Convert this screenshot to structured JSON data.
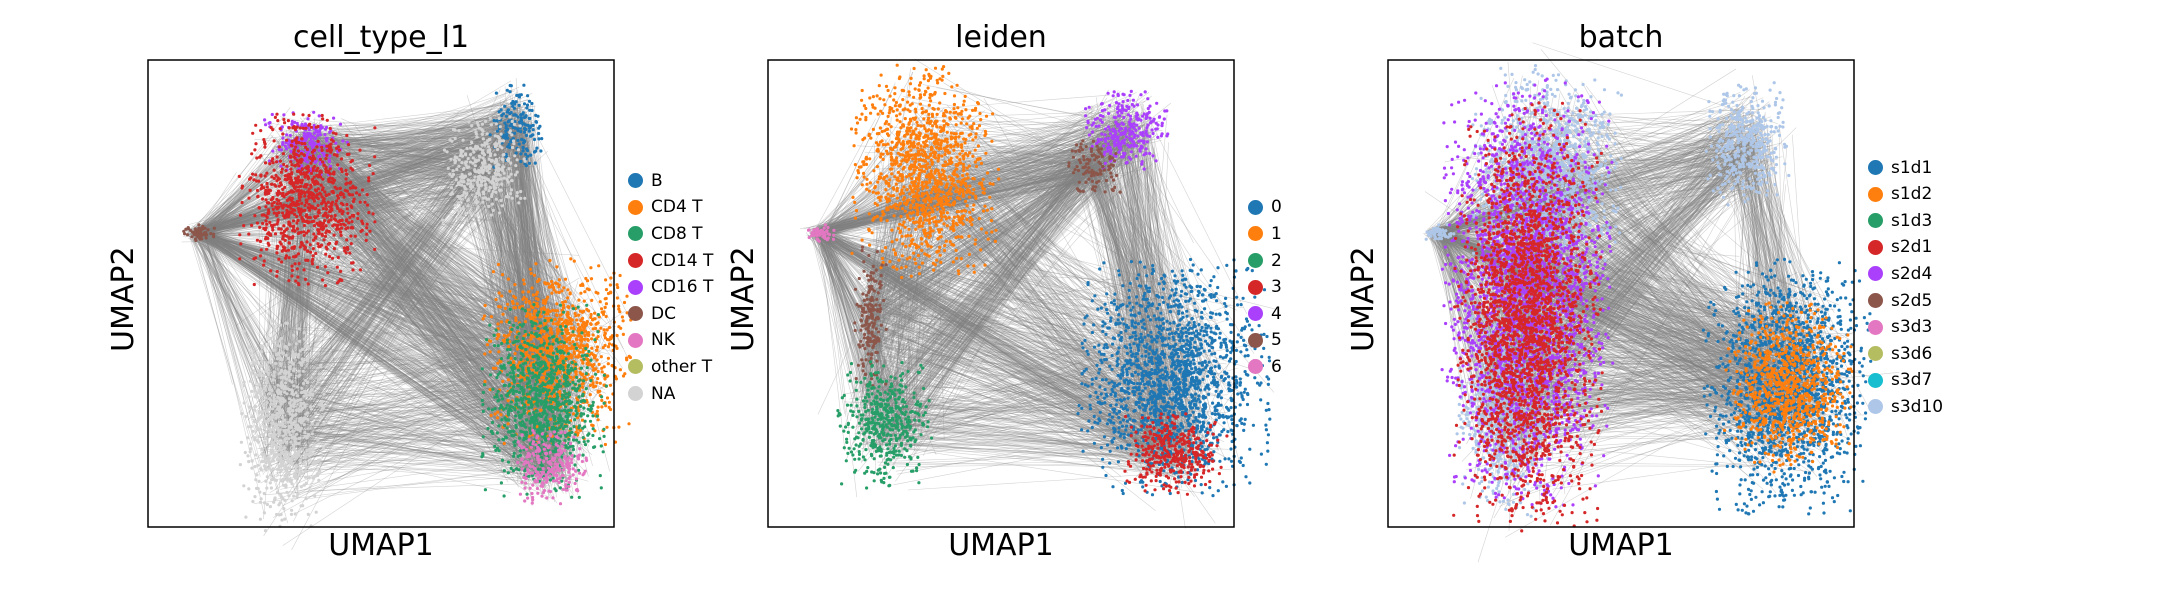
{
  "chart_data": [
    {
      "type": "scatter",
      "title": "cell_type_l1",
      "xlabel": "UMAP1",
      "ylabel": "UMAP2",
      "grid": false,
      "legend_position": "right",
      "legend": [
        {
          "name": "B",
          "color": "#1f77b4"
        },
        {
          "name": "CD4 T",
          "color": "#ff7f0e"
        },
        {
          "name": "CD8 T",
          "color": "#279e68"
        },
        {
          "name": "CD14 T",
          "color": "#d62728"
        },
        {
          "name": "CD16 T",
          "color": "#aa40fc"
        },
        {
          "name": "DC",
          "color": "#8c564b"
        },
        {
          "name": "NK",
          "color": "#e377c2"
        },
        {
          "name": "other T",
          "color": "#b5bd61"
        },
        {
          "name": "NA",
          "color": "#d3d3d3"
        }
      ],
      "clusters": [
        {
          "group": "B",
          "x": 0.79,
          "y": 0.86,
          "sx": 0.025,
          "sy": 0.04
        },
        {
          "group": "CD16 T",
          "x": 0.34,
          "y": 0.82,
          "sx": 0.04,
          "sy": 0.03
        },
        {
          "group": "CD14 T",
          "x": 0.34,
          "y": 0.7,
          "sx": 0.065,
          "sy": 0.08
        },
        {
          "group": "DC",
          "x": 0.11,
          "y": 0.63,
          "sx": 0.015,
          "sy": 0.008
        },
        {
          "group": "CD4 T",
          "x": 0.88,
          "y": 0.37,
          "sx": 0.07,
          "sy": 0.09
        },
        {
          "group": "CD8 T",
          "x": 0.85,
          "y": 0.27,
          "sx": 0.06,
          "sy": 0.09
        },
        {
          "group": "NK",
          "x": 0.86,
          "y": 0.13,
          "sx": 0.04,
          "sy": 0.035
        },
        {
          "group": "NA",
          "x": 0.29,
          "y": 0.22,
          "sx": 0.04,
          "sy": 0.1
        },
        {
          "group": "NA",
          "x": 0.72,
          "y": 0.77,
          "sx": 0.04,
          "sy": 0.05
        }
      ]
    },
    {
      "type": "scatter",
      "title": "leiden",
      "xlabel": "UMAP1",
      "ylabel": "UMAP2",
      "grid": false,
      "legend_position": "right",
      "legend": [
        {
          "name": "0",
          "color": "#1f77b4"
        },
        {
          "name": "1",
          "color": "#ff7f0e"
        },
        {
          "name": "2",
          "color": "#279e68"
        },
        {
          "name": "3",
          "color": "#d62728"
        },
        {
          "name": "4",
          "color": "#aa40fc"
        },
        {
          "name": "5",
          "color": "#8c564b"
        },
        {
          "name": "6",
          "color": "#e377c2"
        }
      ],
      "clusters": [
        {
          "group": "0",
          "x": 0.87,
          "y": 0.32,
          "sx": 0.09,
          "sy": 0.11
        },
        {
          "group": "3",
          "x": 0.87,
          "y": 0.16,
          "sx": 0.05,
          "sy": 0.04
        },
        {
          "group": "1",
          "x": 0.34,
          "y": 0.76,
          "sx": 0.07,
          "sy": 0.1
        },
        {
          "group": "4",
          "x": 0.77,
          "y": 0.85,
          "sx": 0.04,
          "sy": 0.04
        },
        {
          "group": "5",
          "x": 0.7,
          "y": 0.77,
          "sx": 0.025,
          "sy": 0.025
        },
        {
          "group": "5",
          "x": 0.22,
          "y": 0.45,
          "sx": 0.015,
          "sy": 0.07
        },
        {
          "group": "2",
          "x": 0.25,
          "y": 0.22,
          "sx": 0.045,
          "sy": 0.06
        },
        {
          "group": "6",
          "x": 0.11,
          "y": 0.63,
          "sx": 0.015,
          "sy": 0.008
        }
      ]
    },
    {
      "type": "scatter",
      "title": "batch",
      "xlabel": "UMAP1",
      "ylabel": "UMAP2",
      "grid": false,
      "legend_position": "right",
      "legend": [
        {
          "name": "s1d1",
          "color": "#1f77b4"
        },
        {
          "name": "s1d2",
          "color": "#ff7f0e"
        },
        {
          "name": "s1d3",
          "color": "#279e68"
        },
        {
          "name": "s2d1",
          "color": "#d62728"
        },
        {
          "name": "s2d4",
          "color": "#aa40fc"
        },
        {
          "name": "s2d5",
          "color": "#8c564b"
        },
        {
          "name": "s3d3",
          "color": "#e377c2"
        },
        {
          "name": "s3d6",
          "color": "#b5bd61"
        },
        {
          "name": "s3d7",
          "color": "#17becf"
        },
        {
          "name": "s3d10",
          "color": "#aec7e8"
        }
      ],
      "clusters": [
        {
          "group": "s3d10",
          "x": 0.34,
          "y": 0.76,
          "sx": 0.07,
          "sy": 0.1
        },
        {
          "group": "s3d10",
          "x": 0.25,
          "y": 0.25,
          "sx": 0.045,
          "sy": 0.1
        },
        {
          "group": "s3d10",
          "x": 0.77,
          "y": 0.82,
          "sx": 0.04,
          "sy": 0.06
        },
        {
          "group": "s3d10",
          "x": 0.11,
          "y": 0.63,
          "sx": 0.015,
          "sy": 0.008
        },
        {
          "group": "s1d1",
          "x": 0.86,
          "y": 0.3,
          "sx": 0.08,
          "sy": 0.12
        },
        {
          "group": "s1d2",
          "x": 0.86,
          "y": 0.3,
          "sx": 0.06,
          "sy": 0.08
        },
        {
          "group": "s2d4",
          "x": 0.3,
          "y": 0.5,
          "sx": 0.08,
          "sy": 0.2
        },
        {
          "group": "s2d1",
          "x": 0.3,
          "y": 0.45,
          "sx": 0.07,
          "sy": 0.2
        }
      ]
    }
  ]
}
